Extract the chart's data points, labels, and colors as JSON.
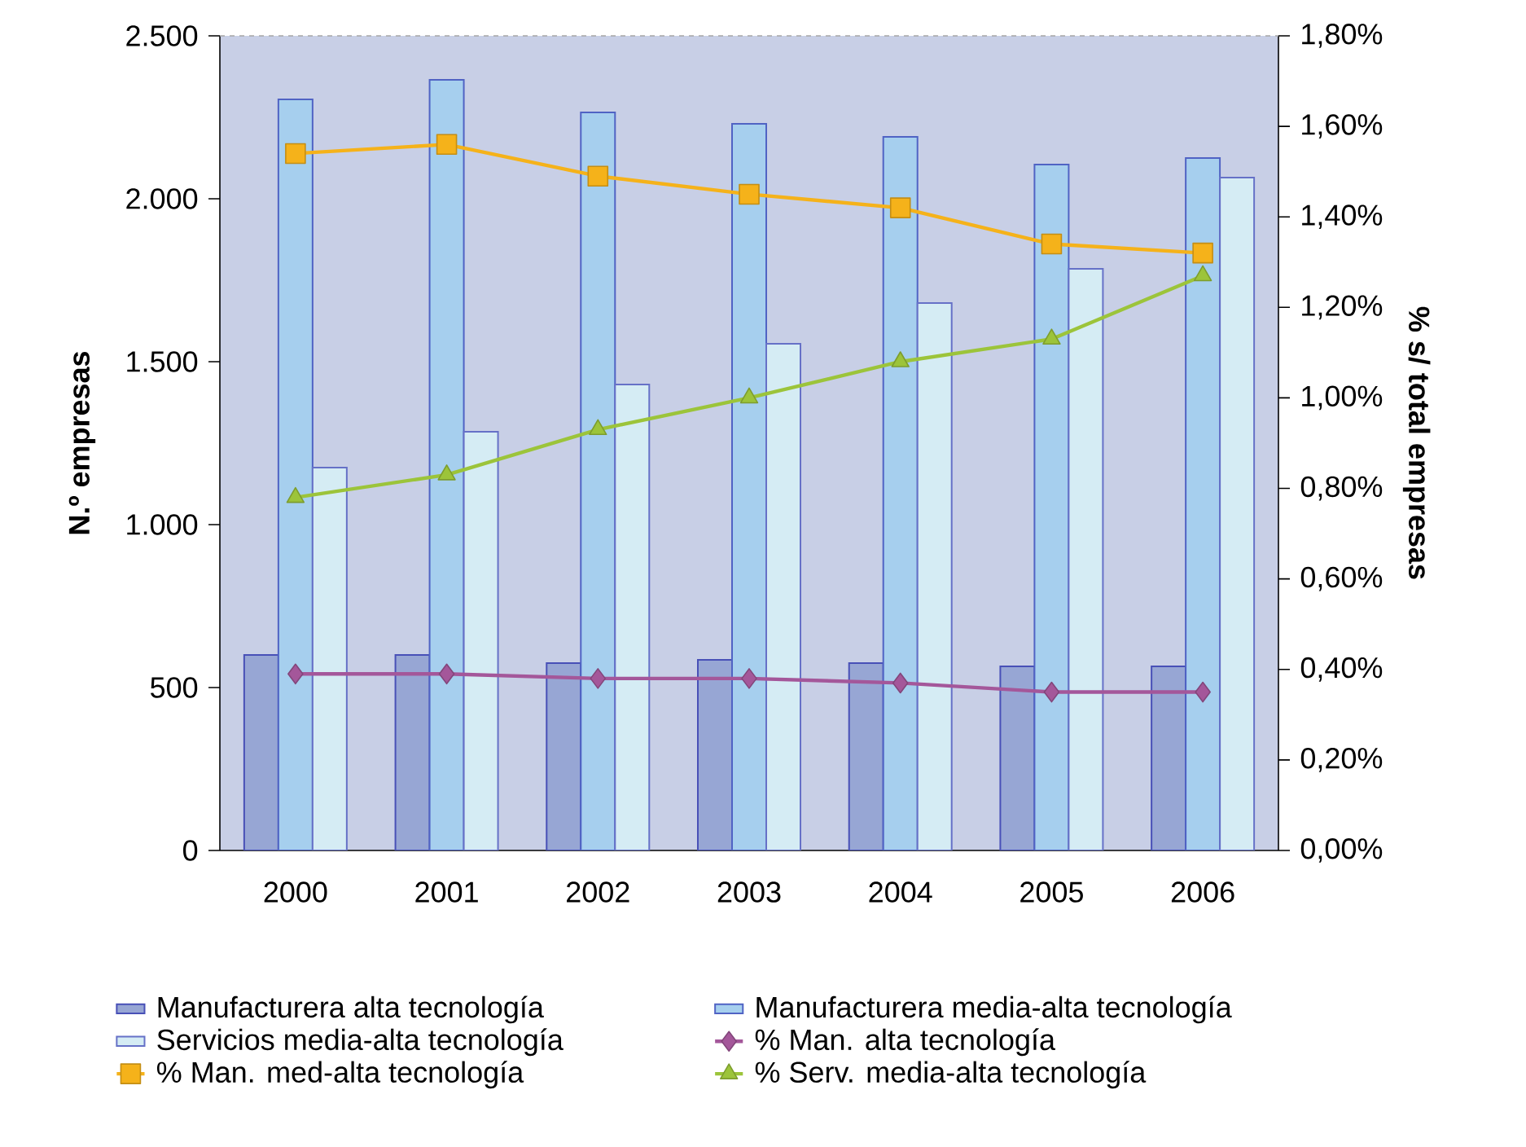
{
  "chart_data": {
    "type": "bar",
    "categories": [
      "2000",
      "2001",
      "2002",
      "2003",
      "2004",
      "2005",
      "2006"
    ],
    "ylabel": "N.º empresas",
    "y2label": "% s/ total empresas",
    "ylim": [
      0,
      2500
    ],
    "yticks": [
      0,
      500,
      {
        "value": 1000,
        "label": "1.000"
      },
      {
        "value": 1500,
        "label": "1.500"
      },
      {
        "value": 2000,
        "label": "2.000"
      },
      {
        "value": 2500,
        "label": "2.500"
      }
    ],
    "y2lim": [
      0,
      1.8
    ],
    "y2ticks": [
      {
        "value": 0,
        "label": "0,00%"
      },
      {
        "value": 0.2,
        "label": "0,20%"
      },
      {
        "value": 0.4,
        "label": "0,40%"
      },
      {
        "value": 0.6,
        "label": "0,60%"
      },
      {
        "value": 0.8,
        "label": "0,80%"
      },
      {
        "value": 1.0,
        "label": "1,00%"
      },
      {
        "value": 1.2,
        "label": "1,20%"
      },
      {
        "value": 1.4,
        "label": "1,40%"
      },
      {
        "value": 1.6,
        "label": "1,60%"
      },
      {
        "value": 1.8,
        "label": "1,80%"
      }
    ],
    "legend": "bottom",
    "series": [
      {
        "name": "Manufacturera alta tecnología",
        "color": "#97a6d4",
        "values": [
          600,
          600,
          575,
          585,
          575,
          565,
          565
        ]
      },
      {
        "name": "Manufacturera media-alta tecnología",
        "color": "#a6cfee",
        "values": [
          2305,
          2365,
          2265,
          2230,
          2190,
          2105,
          2125
        ]
      },
      {
        "name": "Servicios media-alta tecnología",
        "color": "#d5ecf4",
        "values": [
          1175,
          1285,
          1430,
          1555,
          1680,
          1785,
          2065
        ]
      },
      {
        "name": "% Man. alta tecnología",
        "type": "line",
        "axis": "y2",
        "marker": "diamond",
        "color": "#a4579a",
        "values": [
          0.39,
          0.39,
          0.38,
          0.38,
          0.37,
          0.35,
          0.35
        ]
      },
      {
        "name": "% Man. med-alta tecnología",
        "type": "line",
        "axis": "y2",
        "marker": "square",
        "color": "#f5b21a",
        "values": [
          1.54,
          1.56,
          1.49,
          1.45,
          1.42,
          1.34,
          1.32
        ]
      },
      {
        "name": "% Serv. media-alta tecnología",
        "type": "line",
        "axis": "y2",
        "marker": "triangle",
        "color": "#9cc43a",
        "values": [
          0.78,
          0.83,
          0.93,
          1.0,
          1.08,
          1.13,
          1.27
        ]
      }
    ]
  }
}
